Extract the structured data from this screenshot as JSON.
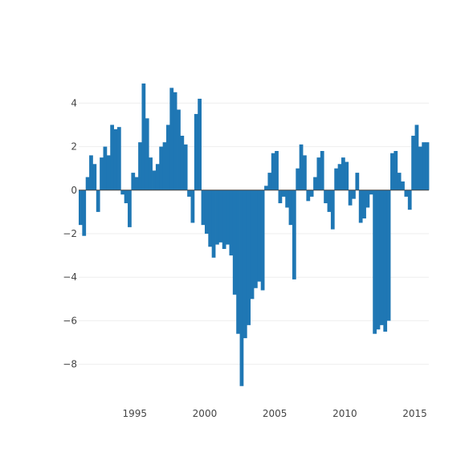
{
  "chart_data": {
    "type": "bar",
    "title": "",
    "xlabel": "",
    "ylabel": "",
    "bar_color": "#1f77b4",
    "xlim": [
      1991.0,
      2016.0
    ],
    "ylim": [
      -9.6,
      5.6
    ],
    "yticks": [
      {
        "value": -8,
        "label": "−8"
      },
      {
        "value": -6,
        "label": "−6"
      },
      {
        "value": -4,
        "label": "−4"
      },
      {
        "value": -2,
        "label": "−2"
      },
      {
        "value": 0,
        "label": "0"
      },
      {
        "value": 2,
        "label": "2"
      },
      {
        "value": 4,
        "label": "4"
      }
    ],
    "xticks": [
      {
        "value": 1995,
        "label": "1995"
      },
      {
        "value": 2000,
        "label": "2000"
      },
      {
        "value": 2005,
        "label": "2005"
      },
      {
        "value": 2010,
        "label": "2010"
      },
      {
        "value": 2015,
        "label": "2015"
      }
    ],
    "grid": true,
    "series": [
      {
        "x": [
          1991.0,
          1991.25,
          1991.5,
          1991.75,
          1992.0,
          1992.25,
          1992.5,
          1992.75,
          1993.0,
          1993.25,
          1993.5,
          1993.75,
          1994.0,
          1994.25,
          1994.5,
          1994.75,
          1995.0,
          1995.25,
          1995.5,
          1995.75,
          1996.0,
          1996.25,
          1996.5,
          1996.75,
          1997.0,
          1997.25,
          1997.5,
          1997.75,
          1998.0,
          1998.25,
          1998.5,
          1998.75,
          1999.0,
          1999.25,
          1999.5,
          1999.75,
          2000.0,
          2000.25,
          2000.5,
          2000.75,
          2001.0,
          2001.25,
          2001.5,
          2001.75,
          2002.0,
          2002.25,
          2002.5,
          2002.75,
          2003.0,
          2003.25,
          2003.5,
          2003.75,
          2004.0,
          2004.25,
          2004.5,
          2004.75,
          2005.0,
          2005.25,
          2005.5,
          2005.75,
          2006.0,
          2006.25,
          2006.5,
          2006.75,
          2007.0,
          2007.25,
          2007.5,
          2007.75,
          2008.0,
          2008.25,
          2008.5,
          2008.75,
          2009.0,
          2009.25,
          2009.5,
          2009.75,
          2010.0,
          2010.25,
          2010.5,
          2010.75,
          2011.0,
          2011.25,
          2011.5,
          2011.75,
          2012.0,
          2012.25,
          2012.5,
          2012.75,
          2013.0,
          2013.25,
          2013.5,
          2013.75,
          2014.0,
          2014.25,
          2014.5,
          2014.75,
          2015.0,
          2015.25,
          2015.5,
          2015.75
        ],
        "values": [
          -1.6,
          -2.1,
          0.6,
          1.6,
          1.2,
          -1.0,
          1.5,
          2.0,
          1.6,
          3.0,
          2.8,
          2.9,
          -0.2,
          -0.6,
          -1.7,
          0.8,
          0.6,
          2.2,
          4.9,
          3.3,
          1.5,
          0.9,
          1.2,
          2.0,
          2.2,
          3.0,
          4.7,
          4.5,
          3.7,
          2.5,
          2.1,
          -0.3,
          -1.5,
          3.5,
          4.2,
          -1.6,
          -2.0,
          -2.6,
          -3.1,
          -2.5,
          -2.4,
          -2.7,
          -2.5,
          -3.0,
          -4.8,
          -6.6,
          -9.0,
          -6.8,
          -6.2,
          -5.0,
          -4.5,
          -4.2,
          -4.6,
          0.2,
          0.8,
          1.7,
          1.8,
          -0.6,
          -0.3,
          -0.8,
          -1.6,
          -4.1,
          1.0,
          2.1,
          1.6,
          -0.5,
          -0.3,
          0.6,
          1.5,
          1.8,
          -0.6,
          -1.0,
          -1.8,
          1.0,
          1.2,
          1.5,
          1.3,
          -0.7,
          -0.4,
          0.8,
          -1.5,
          -1.3,
          -0.8,
          -0.2,
          -6.6,
          -6.4,
          -6.2,
          -6.5,
          -6.0,
          1.7,
          1.8,
          0.8,
          0.4,
          -0.3,
          -0.9,
          2.5,
          3.0,
          2.0,
          2.2,
          2.2
        ]
      }
    ]
  }
}
